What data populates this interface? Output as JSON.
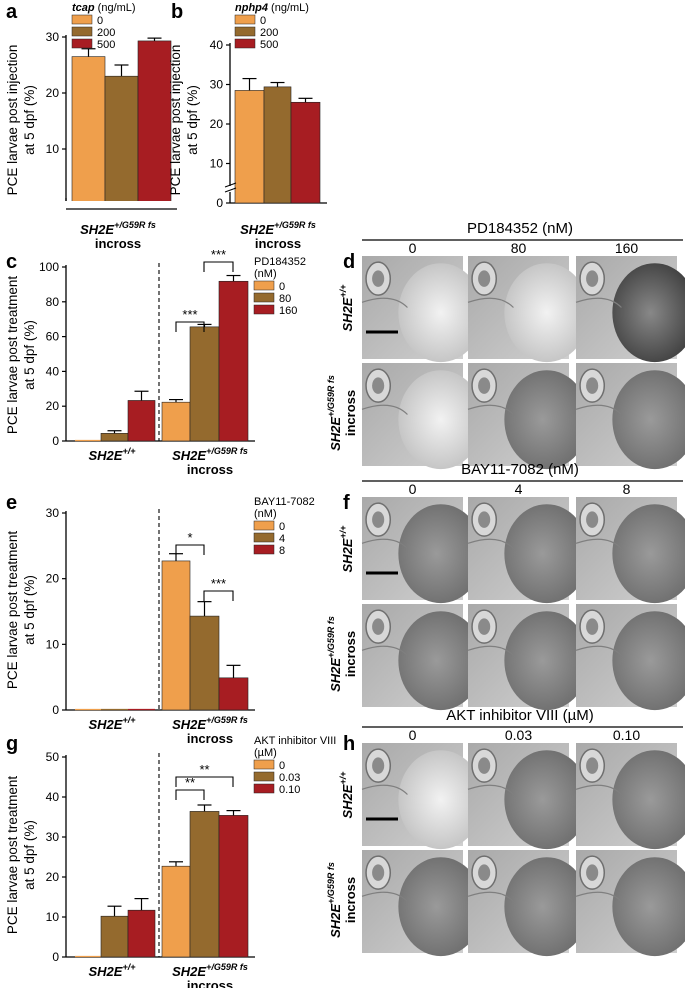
{
  "colors": {
    "c0": "#ef9f4c",
    "c1": "#946a2e",
    "c2": "#a71d22"
  },
  "panels": {
    "a": {
      "label": "a",
      "legend_title_ital": "tcap",
      "legend_title_rest": " (ng/mL)",
      "legend": [
        "0",
        "200",
        "500"
      ]
    },
    "b": {
      "label": "b",
      "legend_title_ital": "nphp4",
      "legend_title_rest": " (ng/mL)",
      "legend": [
        "0",
        "200",
        "500"
      ]
    },
    "c": {
      "label": "c",
      "legend_title": [
        "PD184352",
        "(nM)"
      ],
      "legend": [
        "0",
        "80",
        "160"
      ]
    },
    "d": {
      "label": "d",
      "title": "PD184352 (nM)",
      "columns": [
        "0",
        "80",
        "160"
      ]
    },
    "e": {
      "label": "e",
      "legend_title": [
        "BAY11-7082",
        "(nM)"
      ],
      "legend": [
        "0",
        "4",
        "8"
      ]
    },
    "f": {
      "label": "f",
      "title": "BAY11-7082 (nM)",
      "columns": [
        "0",
        "4",
        "8"
      ]
    },
    "g": {
      "label": "g",
      "legend_title": [
        "AKT inhibitor VIII",
        "(µM)"
      ],
      "legend": [
        "0",
        "0.03",
        "0.10"
      ]
    },
    "h": {
      "label": "h",
      "title": "AKT inhibitor VIII (µM)",
      "columns": [
        "0",
        "0.03",
        "0.10"
      ]
    }
  },
  "common": {
    "ylabel_injection": [
      "PCE larvae post injection",
      "at 5 dpf (%)"
    ],
    "ylabel_treatment": [
      "PCE larvae post treatment",
      "at 5 dpf (%)"
    ],
    "geno_wt_base": "SH2E",
    "geno_wt_sup": "+/+",
    "geno_mut_base": "SH2E",
    "geno_mut_sup": "+/G59R fs",
    "incross": "incross",
    "row_wt_base": "SH2E",
    "row_wt_sup": "+/+",
    "row_mut_base": "SH2E",
    "row_mut_sup": "+/G59R fs",
    "row_incross": "incross"
  },
  "chart_data": [
    {
      "panel": "a",
      "type": "bar",
      "categories": [
        "SH2E+/G59R fs incross"
      ],
      "ylim": [
        0,
        30
      ],
      "ticks": [
        "10",
        "20",
        "30"
      ],
      "series": [
        {
          "name": "0",
          "values": [
            26.5
          ],
          "err": [
            1.4
          ]
        },
        {
          "name": "200",
          "values": [
            23.0
          ],
          "err": [
            2.0
          ]
        },
        {
          "name": "500",
          "values": [
            29.3
          ],
          "err": [
            0.5
          ]
        }
      ]
    },
    {
      "panel": "b",
      "type": "bar",
      "categories": [
        "SH2E+/G59R fs incross"
      ],
      "ylim": [
        0,
        40
      ],
      "ticks": [
        "0",
        "10",
        "20",
        "30",
        "40"
      ],
      "series": [
        {
          "name": "0",
          "values": [
            28.5
          ],
          "err": [
            3.0
          ]
        },
        {
          "name": "200",
          "values": [
            29.4
          ],
          "err": [
            1.1
          ]
        },
        {
          "name": "500",
          "values": [
            25.5
          ],
          "err": [
            1.0
          ]
        }
      ]
    },
    {
      "panel": "c",
      "type": "bar",
      "categories": [
        "SH2E+/+",
        "SH2E+/G59R fs incross"
      ],
      "ylim": [
        0,
        100
      ],
      "ticks": [
        "0",
        "20",
        "40",
        "60",
        "80",
        "100"
      ],
      "series": [
        {
          "name": "0",
          "values": [
            0,
            22.3
          ],
          "err": [
            0,
            1.5
          ]
        },
        {
          "name": "80",
          "values": [
            4.4,
            65.6
          ],
          "err": [
            1.5,
            1.4
          ]
        },
        {
          "name": "160",
          "values": [
            23.3,
            91.8
          ],
          "err": [
            5.3,
            3.3
          ]
        }
      ],
      "annotations": [
        "***",
        "***"
      ]
    },
    {
      "panel": "e",
      "type": "bar",
      "categories": [
        "SH2E+/+",
        "SH2E+/G59R fs incross"
      ],
      "ylim": [
        0,
        30
      ],
      "ticks": [
        "0",
        "10",
        "20",
        "30"
      ],
      "series": [
        {
          "name": "0",
          "values": [
            0,
            22.7
          ],
          "err": [
            0,
            1.1
          ]
        },
        {
          "name": "4",
          "values": [
            0,
            14.3
          ],
          "err": [
            0,
            2.2
          ]
        },
        {
          "name": "8",
          "values": [
            0,
            4.9
          ],
          "err": [
            0,
            1.9
          ]
        }
      ],
      "annotations": [
        "*",
        "***"
      ]
    },
    {
      "panel": "g",
      "type": "bar",
      "categories": [
        "SH2E+/+",
        "SH2E+/G59R fs incross"
      ],
      "ylim": [
        0,
        50
      ],
      "ticks": [
        "0",
        "10",
        "20",
        "30",
        "40",
        "50"
      ],
      "series": [
        {
          "name": "0",
          "values": [
            0,
            22.7
          ],
          "err": [
            0,
            1.1
          ]
        },
        {
          "name": "0.03",
          "values": [
            10.2,
            36.4
          ],
          "err": [
            2.5,
            1.6
          ]
        },
        {
          "name": "0.10",
          "values": [
            11.7,
            35.4
          ],
          "err": [
            2.9,
            1.2
          ]
        }
      ],
      "annotations": [
        "**",
        "**"
      ]
    }
  ]
}
